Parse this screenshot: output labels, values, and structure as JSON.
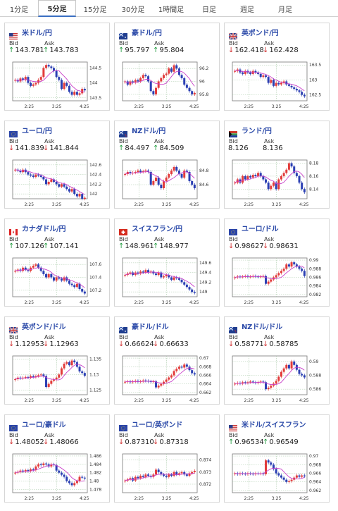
{
  "tabs": [
    {
      "label": "1分足",
      "active": false
    },
    {
      "label": "5分足",
      "active": true
    },
    {
      "label": "15分足",
      "active": false
    },
    {
      "label": "30分足",
      "active": false
    },
    {
      "label": "1時間足",
      "active": false
    },
    {
      "label": "日足",
      "active": false
    },
    {
      "label": "週足",
      "active": false
    },
    {
      "label": "月足",
      "active": false
    }
  ],
  "colors": {
    "up": "#1e9a3c",
    "down": "#d02a2a",
    "candle_up": "#e23b3b",
    "candle_down": "#2b3fb3",
    "ma": "#c940c9",
    "grid": "#a8c8a8"
  },
  "cards": [
    {
      "pair": "米ドル/円",
      "flag": "us-jp",
      "bid_label": "Bid",
      "ask_label": "Ask",
      "dir": "up",
      "bid": "143.781",
      "ask": "143.783",
      "chart_data": {
        "type": "candlestick",
        "x_ticks": [
          "2:25",
          "3:25",
          "4:25"
        ],
        "y_ticks": [
          "144.5",
          "144",
          "143.5"
        ],
        "ylim": [
          143.4,
          144.7
        ],
        "close": [
          144.1,
          144.05,
          144.15,
          144.1,
          144.2,
          144.0,
          143.9,
          143.95,
          144.0,
          144.1,
          144.2,
          144.5,
          144.6,
          144.55,
          144.5,
          144.4,
          144.2,
          144.1,
          143.8,
          144.0,
          143.9,
          143.7,
          143.6,
          143.7,
          143.6,
          143.65,
          143.8,
          143.75
        ]
      }
    },
    {
      "pair": "豪ドル/円",
      "flag": "au-jp",
      "bid_label": "Bid",
      "ask_label": "Ask",
      "dir": "up",
      "bid": "95.797",
      "ask": "95.804",
      "chart_data": {
        "type": "candlestick",
        "x_ticks": [
          "2:25",
          "3:25",
          "4:25"
        ],
        "y_ticks": [
          "96.2",
          "96",
          "95.8"
        ],
        "ylim": [
          95.7,
          96.3
        ],
        "close": [
          96.0,
          95.95,
          96.0,
          95.98,
          96.02,
          96.0,
          96.05,
          96.1,
          96.08,
          96.0,
          95.85,
          95.8,
          95.9,
          96.0,
          96.05,
          96.1,
          96.12,
          96.2,
          96.15,
          96.25,
          96.2,
          96.1,
          96.05,
          95.95,
          95.9,
          95.85,
          95.8,
          95.82
        ]
      }
    },
    {
      "pair": "英ポンド/円",
      "flag": "gb-jp",
      "bid_label": "Bid",
      "ask_label": "Ask",
      "dir": "down",
      "bid": "162.418",
      "ask": "162.428",
      "chart_data": {
        "type": "candlestick",
        "x_ticks": [
          "2:25",
          "3:25",
          "4:25"
        ],
        "y_ticks": [
          "163.5",
          "163",
          "162.5"
        ],
        "ylim": [
          162.3,
          163.6
        ],
        "close": [
          163.3,
          163.35,
          163.25,
          163.2,
          163.3,
          163.25,
          163.2,
          163.3,
          163.25,
          163.2,
          163.1,
          163.15,
          163.1,
          162.9,
          163.0,
          162.8,
          162.9,
          162.85,
          162.9,
          162.95,
          162.85,
          162.8,
          162.75,
          162.7,
          162.65,
          162.6,
          162.5,
          162.45
        ]
      }
    },
    {
      "pair": "ユーロ/円",
      "flag": "eu-jp",
      "bid_label": "Bid",
      "ask_label": "Ask",
      "dir": "down",
      "bid": "141.839",
      "ask": "141.844",
      "chart_data": {
        "type": "candlestick",
        "x_ticks": [
          "2:25",
          "3:25",
          "4:25"
        ],
        "y_ticks": [
          "142.6",
          "142.4",
          "142.2",
          "142"
        ],
        "ylim": [
          141.9,
          142.7
        ],
        "close": [
          142.5,
          142.48,
          142.45,
          142.5,
          142.45,
          142.4,
          142.38,
          142.35,
          142.4,
          142.38,
          142.35,
          142.3,
          142.2,
          142.25,
          142.3,
          142.25,
          142.2,
          142.15,
          142.2,
          142.15,
          142.1,
          142.05,
          142.1,
          142.0,
          141.95,
          142.0,
          141.9,
          141.92
        ]
      }
    },
    {
      "pair": "NZドル/円",
      "flag": "nz-jp",
      "bid_label": "Bid",
      "ask_label": "Ask",
      "dir": "up",
      "bid": "84.497",
      "ask": "84.509",
      "chart_data": {
        "type": "candlestick",
        "x_ticks": [
          "2:25",
          "3:25",
          "4:25"
        ],
        "y_ticks": [
          "84.8",
          "84.6"
        ],
        "ylim": [
          84.4,
          84.95
        ],
        "close": [
          84.75,
          84.78,
          84.76,
          84.77,
          84.78,
          84.8,
          84.78,
          84.79,
          84.8,
          84.78,
          84.6,
          84.65,
          84.7,
          84.6,
          84.55,
          84.65,
          84.7,
          84.75,
          84.8,
          84.85,
          84.8,
          84.75,
          84.7,
          84.8,
          84.78,
          84.65,
          84.6,
          84.55
        ]
      }
    },
    {
      "pair": "ランド/円",
      "flag": "za-jp",
      "bid_label": "Bid",
      "ask_label": "Ask",
      "dir": "none",
      "bid": "8.126",
      "ask": "8.136",
      "chart_data": {
        "type": "candlestick",
        "x_ticks": [
          "2:25",
          "3:25",
          "4:25"
        ],
        "y_ticks": [
          "8.18",
          "8.16",
          "8.14"
        ],
        "ylim": [
          8.125,
          8.185
        ],
        "close": [
          8.15,
          8.155,
          8.15,
          8.16,
          8.155,
          8.16,
          8.158,
          8.162,
          8.16,
          8.165,
          8.16,
          8.155,
          8.15,
          8.14,
          8.145,
          8.15,
          8.14,
          8.155,
          8.16,
          8.165,
          8.17,
          8.18,
          8.175,
          8.165,
          8.16,
          8.15,
          8.14,
          8.135
        ]
      }
    },
    {
      "pair": "カナダドル/円",
      "flag": "ca-jp",
      "bid_label": "Bid",
      "ask_label": "Ask",
      "dir": "up",
      "bid": "107.126",
      "ask": "107.141",
      "chart_data": {
        "type": "candlestick",
        "x_ticks": [
          "2:25",
          "3:25",
          "4:25"
        ],
        "y_ticks": [
          "107.6",
          "107.4",
          "107.2"
        ],
        "ylim": [
          107.1,
          107.7
        ],
        "close": [
          107.5,
          107.52,
          107.5,
          107.55,
          107.52,
          107.5,
          107.55,
          107.58,
          107.6,
          107.55,
          107.5,
          107.45,
          107.4,
          107.45,
          107.4,
          107.35,
          107.4,
          107.38,
          107.35,
          107.4,
          107.35,
          107.3,
          107.28,
          107.25,
          107.3,
          107.22,
          107.18,
          107.15
        ]
      }
    },
    {
      "pair": "スイスフラン/円",
      "flag": "ch-jp",
      "bid_label": "Bid",
      "ask_label": "Ask",
      "dir": "up",
      "bid": "148.961",
      "ask": "148.977",
      "chart_data": {
        "type": "candlestick",
        "x_ticks": [
          "2:25",
          "3:25",
          "4:25"
        ],
        "y_ticks": [
          "149.6",
          "149.4",
          "149.2",
          "149"
        ],
        "ylim": [
          148.9,
          149.7
        ],
        "close": [
          149.35,
          149.38,
          149.4,
          149.35,
          149.4,
          149.38,
          149.42,
          149.4,
          149.45,
          149.4,
          149.42,
          149.38,
          149.35,
          149.4,
          149.3,
          149.32,
          149.35,
          149.3,
          149.25,
          149.3,
          149.28,
          149.25,
          149.2,
          149.15,
          149.1,
          149.05,
          149.0,
          148.98
        ]
      }
    },
    {
      "pair": "ユーロ/ドル",
      "flag": "eu-us",
      "bid_label": "Bid",
      "ask_label": "Ask",
      "dir": "down",
      "bid": "0.98627",
      "ask": "0.98631",
      "chart_data": {
        "type": "candlestick",
        "x_ticks": [
          "2:25",
          "3:25",
          "4:25"
        ],
        "y_ticks": [
          "0.99",
          "0.988",
          "0.986",
          "0.984",
          "0.982"
        ],
        "ylim": [
          0.9815,
          0.9905
        ],
        "close": [
          0.986,
          0.9862,
          0.9861,
          0.9862,
          0.9863,
          0.9861,
          0.9862,
          0.9863,
          0.9862,
          0.9861,
          0.9862,
          0.9863,
          0.9845,
          0.985,
          0.9855,
          0.986,
          0.9865,
          0.987,
          0.9875,
          0.988,
          0.989,
          0.9885,
          0.9895,
          0.989,
          0.9885,
          0.988,
          0.9875,
          0.9863
        ]
      }
    },
    {
      "pair": "英ポンド/ドル",
      "flag": "gb-us",
      "bid_label": "Bid",
      "ask_label": "Ask",
      "dir": "down",
      "bid": "1.12953",
      "ask": "1.12963",
      "chart_data": {
        "type": "candlestick",
        "x_ticks": [
          "2:25",
          "3:25",
          "4:25"
        ],
        "y_ticks": [
          "1.135",
          "1.13",
          "1.125"
        ],
        "ylim": [
          1.1235,
          1.136
        ],
        "close": [
          1.1285,
          1.129,
          1.1288,
          1.129,
          1.1292,
          1.129,
          1.1295,
          1.1292,
          1.1295,
          1.1298,
          1.13,
          1.1295,
          1.126,
          1.127,
          1.128,
          1.1285,
          1.129,
          1.13,
          1.132,
          1.1335,
          1.134,
          1.133,
          1.1345,
          1.134,
          1.1325,
          1.131,
          1.1305,
          1.1296
        ]
      }
    },
    {
      "pair": "豪ドル/ドル",
      "flag": "au-us",
      "bid_label": "Bid",
      "ask_label": "Ask",
      "dir": "down",
      "bid": "0.66624",
      "ask": "0.66633",
      "chart_data": {
        "type": "candlestick",
        "x_ticks": [
          "2:25",
          "3:25",
          "4:25"
        ],
        "y_ticks": [
          "0.67",
          "0.668",
          "0.666",
          "0.664",
          "0.662"
        ],
        "ylim": [
          0.6615,
          0.6705
        ],
        "close": [
          0.6645,
          0.6646,
          0.6644,
          0.6646,
          0.6647,
          0.6645,
          0.6646,
          0.6648,
          0.6647,
          0.6646,
          0.6645,
          0.6646,
          0.6632,
          0.6636,
          0.664,
          0.6645,
          0.665,
          0.6655,
          0.666,
          0.667,
          0.6675,
          0.668,
          0.6678,
          0.6685,
          0.668,
          0.6672,
          0.6665,
          0.6662
        ]
      }
    },
    {
      "pair": "NZドル/ドル",
      "flag": "nz-us",
      "bid_label": "Bid",
      "ask_label": "Ask",
      "dir": "down",
      "bid": "0.58771",
      "ask": "0.58785",
      "chart_data": {
        "type": "candlestick",
        "x_ticks": [
          "2:25",
          "3:25",
          "4:25"
        ],
        "y_ticks": [
          "0.59",
          "0.588",
          "0.586"
        ],
        "ylim": [
          0.5852,
          0.5908
        ],
        "close": [
          0.5868,
          0.5869,
          0.5868,
          0.587,
          0.5869,
          0.587,
          0.5871,
          0.587,
          0.5869,
          0.587,
          0.5871,
          0.587,
          0.586,
          0.5862,
          0.5865,
          0.5868,
          0.5872,
          0.5878,
          0.5885,
          0.589,
          0.5895,
          0.589,
          0.59,
          0.5895,
          0.5888,
          0.5882,
          0.588,
          0.5877
        ]
      }
    },
    {
      "pair": "ユーロ/豪ドル",
      "flag": "eu-au",
      "bid_label": "Bid",
      "ask_label": "Ask",
      "dir": "down",
      "bid": "1.48052",
      "ask": "1.48066",
      "chart_data": {
        "type": "candlestick",
        "x_ticks": [
          "2:25",
          "3:25",
          "4:25"
        ],
        "y_ticks": [
          "1.486",
          "1.484",
          "1.482",
          "1.48",
          "1.478"
        ],
        "ylim": [
          1.4772,
          1.4865
        ],
        "close": [
          1.482,
          1.4822,
          1.4825,
          1.4823,
          1.4826,
          1.4824,
          1.4828,
          1.4826,
          1.4835,
          1.484,
          1.4838,
          1.4842,
          1.484,
          1.4835,
          1.484,
          1.4838,
          1.4825,
          1.482,
          1.4815,
          1.481,
          1.48,
          1.4795,
          1.479,
          1.4795,
          1.48,
          1.481,
          1.4808,
          1.4806
        ]
      }
    },
    {
      "pair": "ユーロ/英ポンド",
      "flag": "eu-gb",
      "bid_label": "Bid",
      "ask_label": "Ask",
      "dir": "down",
      "bid": "0.87310",
      "ask": "0.87318",
      "chart_data": {
        "type": "candlestick",
        "x_ticks": [
          "2:25",
          "3:25",
          "4:25"
        ],
        "y_ticks": [
          "0.874",
          "0.873",
          "0.872"
        ],
        "ylim": [
          0.8713,
          0.8745
        ],
        "close": [
          0.8723,
          0.8724,
          0.8725,
          0.8723,
          0.8726,
          0.8725,
          0.8727,
          0.8726,
          0.8728,
          0.8727,
          0.8726,
          0.8728,
          0.8732,
          0.873,
          0.8728,
          0.8727,
          0.8726,
          0.8728,
          0.8727,
          0.873,
          0.8728,
          0.8729,
          0.873,
          0.8728,
          0.8727,
          0.8729,
          0.873,
          0.8731
        ]
      }
    },
    {
      "pair": "米ドル/スイスフラン",
      "flag": "us-ch",
      "bid_label": "Bid",
      "ask_label": "Ask",
      "dir": "up",
      "bid": "0.96534",
      "ask": "0.96549",
      "chart_data": {
        "type": "candlestick",
        "x_ticks": [
          "2:25",
          "3:25",
          "4:25"
        ],
        "y_ticks": [
          "0.97",
          "0.968",
          "0.966",
          "0.964",
          "0.962"
        ],
        "ylim": [
          0.9615,
          0.9705
        ],
        "close": [
          0.966,
          0.9658,
          0.966,
          0.9659,
          0.9658,
          0.966,
          0.9659,
          0.9658,
          0.966,
          0.9659,
          0.966,
          0.9658,
          0.969,
          0.9685,
          0.968,
          0.967,
          0.966,
          0.9655,
          0.965,
          0.9645,
          0.964,
          0.9642,
          0.9645,
          0.965,
          0.9655,
          0.9652,
          0.9655,
          0.9653
        ]
      }
    }
  ]
}
